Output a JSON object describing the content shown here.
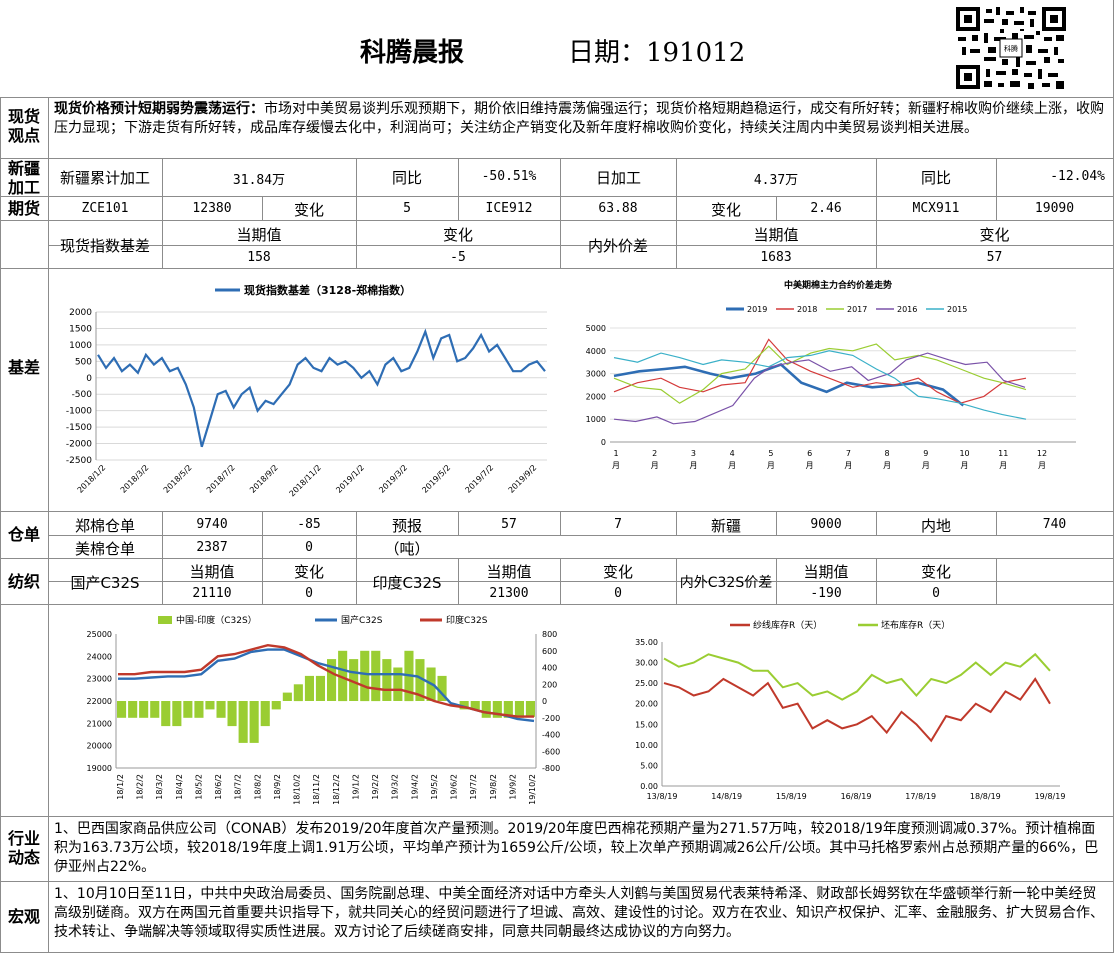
{
  "header": {
    "title": "科腾晨报",
    "date_label": "日期：191012"
  },
  "sections": {
    "spot": "现货\n观点",
    "xinjiang": "新疆\n加工",
    "futures": "期货",
    "basis": "基差",
    "warehouse": "仓单",
    "textile": "纺织",
    "industry": "行业\n动态",
    "macro": "宏观"
  },
  "spot_view": {
    "headline": "现货价格预计短期弱势震荡运行：",
    "body": "市场对中美贸易谈判乐观预期下，期价依旧维持震荡偏强运行；现货价格短期趋稳运行，成交有所好转；新疆籽棉收购价继续上涨，收购压力显现；下游走货有所好转，成品库存缓慢去化中，利润尚可；关注纺企产销变化及新年度籽棉收购价变化，持续关注周内中美贸易谈判相关进展。"
  },
  "xinjiang": {
    "cum_label": "新疆累计加工",
    "cum_value": "31.84万",
    "yoy1_label": "同比",
    "yoy1_value": "-50.51%",
    "daily_label": "日加工",
    "daily_value": "4.37万",
    "yoy2_label": "同比",
    "yoy2_value": "-12.04%"
  },
  "futures": {
    "c1": "ZCE101",
    "c2": "12380",
    "c3": "变化",
    "c4": "5",
    "c5": "ICE912",
    "c6": "63.88",
    "c7": "变化",
    "c8": "2.46",
    "c9": "MCX911",
    "c10": "19090"
  },
  "basis_table": {
    "spot_basis_label": "现货指数基差",
    "cur_label1": "当期值",
    "chg_label1": "变化",
    "cur1": "158",
    "chg1": "-5",
    "inout_label": "内外价差",
    "cur_label2": "当期值",
    "chg_label2": "变化",
    "cur2": "1683",
    "chg2": "57"
  },
  "warehouse": {
    "r1": [
      "郑棉仓单",
      "9740",
      "-85",
      "预报",
      "57",
      "7",
      "新疆",
      "9000",
      "内地",
      "740"
    ],
    "r2": [
      "美棉仓单",
      "2387",
      "0",
      "（吨）"
    ]
  },
  "textile": {
    "label1": "国产C32S",
    "cur_label1": "当期值",
    "chg_label1": "变化",
    "cur1": "21110",
    "chg1": "0",
    "label2": "印度C32S",
    "cur_label2": "当期值",
    "chg_label2": "变化",
    "cur2": "21300",
    "chg2": "0",
    "label3": "内外C32S价差",
    "cur_label3": "当期值",
    "chg_label3": "变化",
    "cur3": "-190",
    "chg3": "0"
  },
  "industry": {
    "text": "1、巴西国家商品供应公司（CONAB）发布2019/20年度首次产量预测。2019/20年度巴西棉花预期产量为271.57万吨，较2018/19年度预测调减0.37%。预计植棉面积为163.73万公顷，较2018/19年度上调1.91万公顷，平均单产预计为1659公斤/公顷，较上次单产预期调减26公斤/公顷。其中马托格罗索州占总预期产量的66%，巴伊亚州占22%。"
  },
  "macro": {
    "text": "1、10月10日至11日，中共中央政治局委员、国务院副总理、中美全面经济对话中方牵头人刘鹤与美国贸易代表莱特希泽、财政部长姆努钦在华盛顿举行新一轮中美经贸高级别磋商。双方在两国元首重要共识指导下，就共同关心的经贸问题进行了坦诚、高效、建设性的讨论。双方在农业、知识产权保护、汇率、金融服务、扩大贸易合作、技术转让、争端解决等领域取得实质性进展。双方讨论了后续磋商安排，同意共同朝最终达成协议的方向努力。"
  },
  "chart_data": [
    {
      "type": "line",
      "title": "现货指数基差（3128-郑棉指数）",
      "color": "#2e6db4",
      "ylim": [
        -2500,
        2000
      ],
      "yticks": [
        "2000",
        "1500",
        "1000",
        "500",
        "0",
        "-500",
        "-1000",
        "-1500",
        "-2000",
        "-2500"
      ],
      "x_ticks": [
        "2018/1/2",
        "2018/3/2",
        "2018/5/2",
        "2018/7/2",
        "2018/9/2",
        "2018/11/2",
        "2019/1/2",
        "2019/3/2",
        "2019/5/2",
        "2019/7/2",
        "2019/9/2"
      ],
      "series": [
        {
          "values": [
            700,
            300,
            600,
            200,
            400,
            150,
            700,
            400,
            600,
            200,
            300,
            -200,
            -900,
            -2100,
            -1300,
            -500,
            -400,
            -900,
            -500,
            -300,
            -1000,
            -700,
            -800,
            -500,
            -200,
            400,
            600,
            300,
            200,
            600,
            400,
            500,
            300,
            0,
            200,
            -200,
            400,
            600,
            200,
            300,
            800,
            1400,
            600,
            1200,
            1300,
            500,
            600,
            900,
            1300,
            800,
            1000,
            600,
            200,
            200,
            400,
            500,
            200
          ]
        }
      ]
    },
    {
      "type": "line",
      "title": "中美期棉主力合约价差走势",
      "ylim": [
        0,
        5000
      ],
      "yticks": [
        "5000",
        "4000",
        "3000",
        "2000",
        "1000",
        "0"
      ],
      "x_ticks": [
        "1\n月",
        "2\n月",
        "3\n月",
        "4\n月",
        "5\n月",
        "6\n月",
        "7\n月",
        "8\n月",
        "9\n月",
        "10\n月",
        "11\n月",
        "12\n月"
      ],
      "series": [
        {
          "name": "2019",
          "color": "#2e6db4",
          "values": [
            2900,
            3100,
            3200,
            3300,
            3000,
            2800,
            3000,
            3400,
            2600,
            2200,
            2600,
            2400,
            2500,
            2600,
            2300,
            1600
          ]
        },
        {
          "name": "2018",
          "color": "#d43a3a",
          "values": [
            2200,
            2600,
            2800,
            2400,
            2200,
            2500,
            2600,
            4500,
            3600,
            3100,
            2800,
            2400,
            2600,
            2500,
            2800,
            2200,
            1700,
            2000,
            2600,
            2800
          ]
        },
        {
          "name": "2017",
          "color": "#9acd32",
          "values": [
            2800,
            2400,
            2300,
            1700,
            2300,
            3000,
            3200,
            4200,
            3400,
            3900,
            4100,
            4000,
            4300,
            3600,
            3800,
            3600,
            3200,
            2800,
            2600,
            2300
          ]
        },
        {
          "name": "2016",
          "color": "#7a52a8",
          "values": [
            1000,
            900,
            1100,
            800,
            900,
            1200,
            1600,
            2800,
            3300,
            3500,
            3600,
            3100,
            3300,
            2700,
            3000,
            3600,
            3900,
            3600,
            3400,
            3500,
            2700,
            2400
          ]
        },
        {
          "name": "2015",
          "color": "#3ab0c8",
          "values": [
            3700,
            3500,
            3900,
            3700,
            3400,
            3600,
            3500,
            3300,
            3700,
            3800,
            4000,
            3800,
            3200,
            2800,
            2000,
            1900,
            1700,
            1400,
            1200,
            1000
          ]
        }
      ]
    },
    {
      "type": "bar+line",
      "legend": [
        "中国-印度（C32S）",
        "国产C32S",
        "印度C32S"
      ],
      "ylim": [
        19000,
        25000
      ],
      "y2lim": [
        -800,
        800
      ],
      "yticks": [
        "25000",
        "24000",
        "23000",
        "22000",
        "21000",
        "20000",
        "19000"
      ],
      "y2ticks": [
        "800",
        "600",
        "400",
        "200",
        "0",
        "-200",
        "-400",
        "-600",
        "-800"
      ],
      "x_ticks": [
        "18/1/2",
        "18/2/2",
        "18/3/2",
        "18/4/2",
        "18/5/2",
        "18/6/2",
        "18/7/2",
        "18/8/2",
        "18/9/2",
        "18/10/2",
        "18/11/2",
        "18/12/2",
        "19/1/2",
        "19/2/2",
        "19/3/2",
        "19/4/2",
        "19/5/2",
        "19/6/2",
        "19/7/2",
        "19/8/2",
        "19/9/2",
        "19/10/2"
      ],
      "series": [
        {
          "name": "中国-印度（C32S）",
          "color": "#9acd32",
          "values": [
            -200,
            -200,
            -200,
            -200,
            -300,
            -300,
            -200,
            -200,
            -100,
            -200,
            -300,
            -500,
            -500,
            -300,
            -100,
            100,
            200,
            300,
            300,
            500,
            600,
            500,
            600,
            600,
            500,
            400,
            600,
            500,
            400,
            300,
            0,
            -100,
            -100,
            -200,
            -200,
            -200,
            -200,
            -190
          ]
        },
        {
          "name": "国产C32S",
          "color": "#2e6db4",
          "values": [
            23000,
            23000,
            23050,
            23100,
            23100,
            23200,
            23800,
            23900,
            24200,
            24300,
            24300,
            24000,
            23700,
            23500,
            23300,
            23200,
            23200,
            23200,
            23100,
            22700,
            21900,
            21700,
            21500,
            21400,
            21200,
            21110
          ]
        },
        {
          "name": "印度C32S",
          "color": "#c0392b",
          "values": [
            23200,
            23200,
            23300,
            23300,
            23300,
            23400,
            24000,
            24100,
            24300,
            24500,
            24400,
            24100,
            23600,
            23200,
            22900,
            22600,
            22500,
            22500,
            22300,
            22000,
            21800,
            21700,
            21500,
            21400,
            21300,
            21300
          ]
        }
      ]
    },
    {
      "type": "line",
      "legend": [
        "纱线库存R（天）",
        "坯布库存R（天）"
      ],
      "ylim": [
        0,
        35
      ],
      "yticks": [
        "35.00",
        "30.00",
        "25.00",
        "20.00",
        "15.00",
        "10.00",
        "5.00",
        "0.00"
      ],
      "x_ticks": [
        "13/8/19",
        "14/8/19",
        "15/8/19",
        "16/8/19",
        "17/8/19",
        "18/8/19",
        "19/8/19"
      ],
      "series": [
        {
          "name": "纱线库存R（天）",
          "color": "#c0392b",
          "values": [
            25,
            24,
            22,
            23,
            26,
            24,
            22,
            25,
            19,
            20,
            14,
            16,
            14,
            15,
            17,
            13,
            18,
            15,
            11,
            17,
            16,
            20,
            18,
            23,
            21,
            26,
            20
          ]
        },
        {
          "name": "坯布库存R（天）",
          "color": "#9acd32",
          "values": [
            31,
            29,
            30,
            32,
            31,
            30,
            28,
            28,
            24,
            25,
            22,
            23,
            21,
            23,
            27,
            25,
            26,
            22,
            26,
            25,
            27,
            30,
            27,
            30,
            29,
            32,
            28
          ]
        }
      ]
    }
  ]
}
